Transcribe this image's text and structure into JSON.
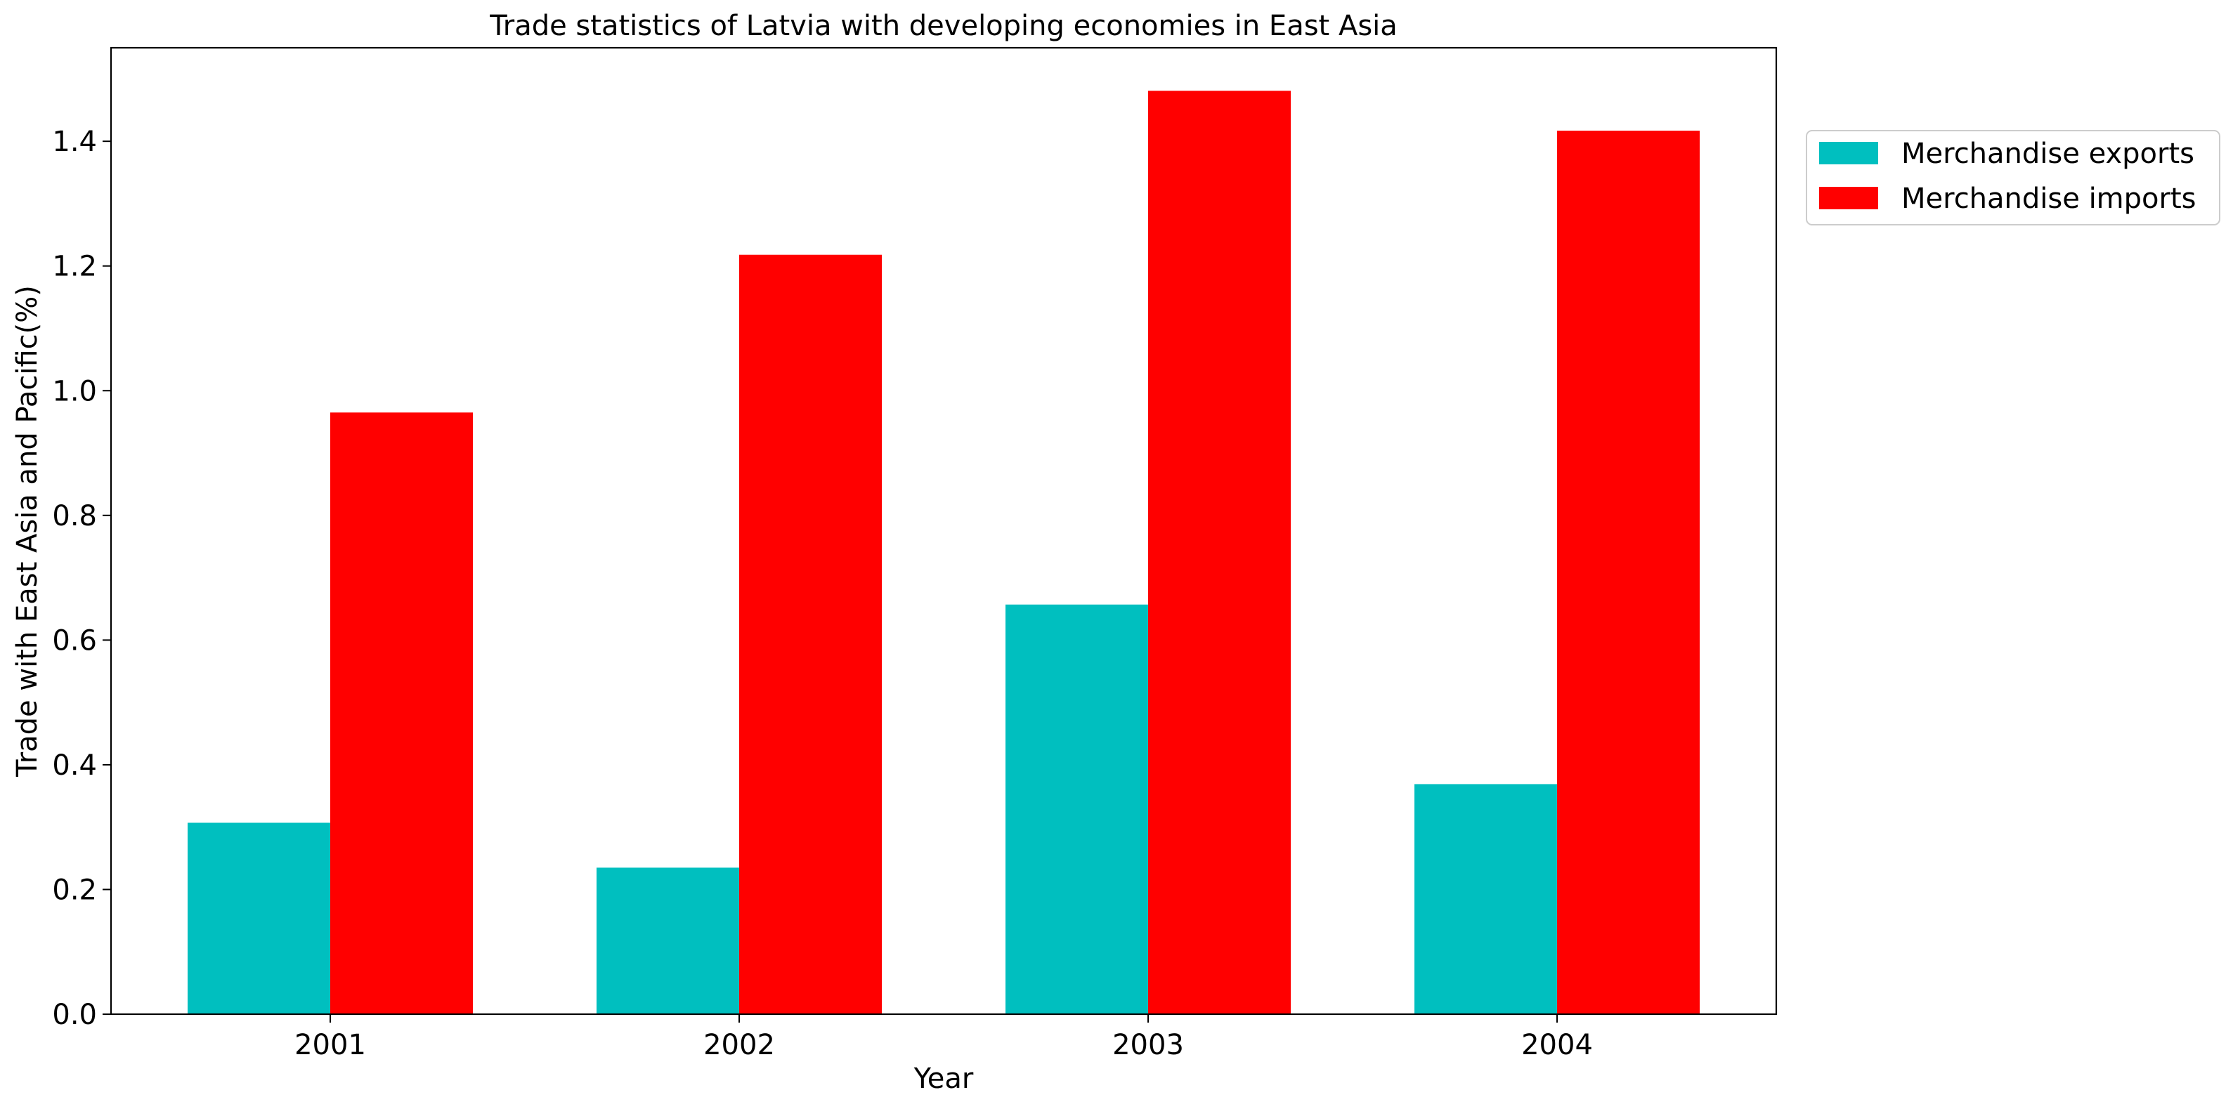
{
  "chart_data": {
    "type": "bar",
    "title": "Trade statistics of Latvia with developing economies in East Asia",
    "xlabel": "Year",
    "ylabel": "Trade with East Asia and Pacific(%)",
    "categories": [
      "2001",
      "2002",
      "2003",
      "2004"
    ],
    "series": [
      {
        "name": "Merchandise exports",
        "color": "#00bfbf",
        "values": [
          0.307,
          0.235,
          0.657,
          0.369
        ]
      },
      {
        "name": "Merchandise imports",
        "color": "#ff0000",
        "values": [
          0.965,
          1.218,
          1.481,
          1.417
        ]
      }
    ],
    "ylim": [
      0,
      1.55
    ],
    "yticks": [
      "0.0",
      "0.2",
      "0.4",
      "0.6",
      "0.8",
      "1.0",
      "1.2",
      "1.4"
    ],
    "grid": false,
    "legend_position": "outside-top-right"
  }
}
